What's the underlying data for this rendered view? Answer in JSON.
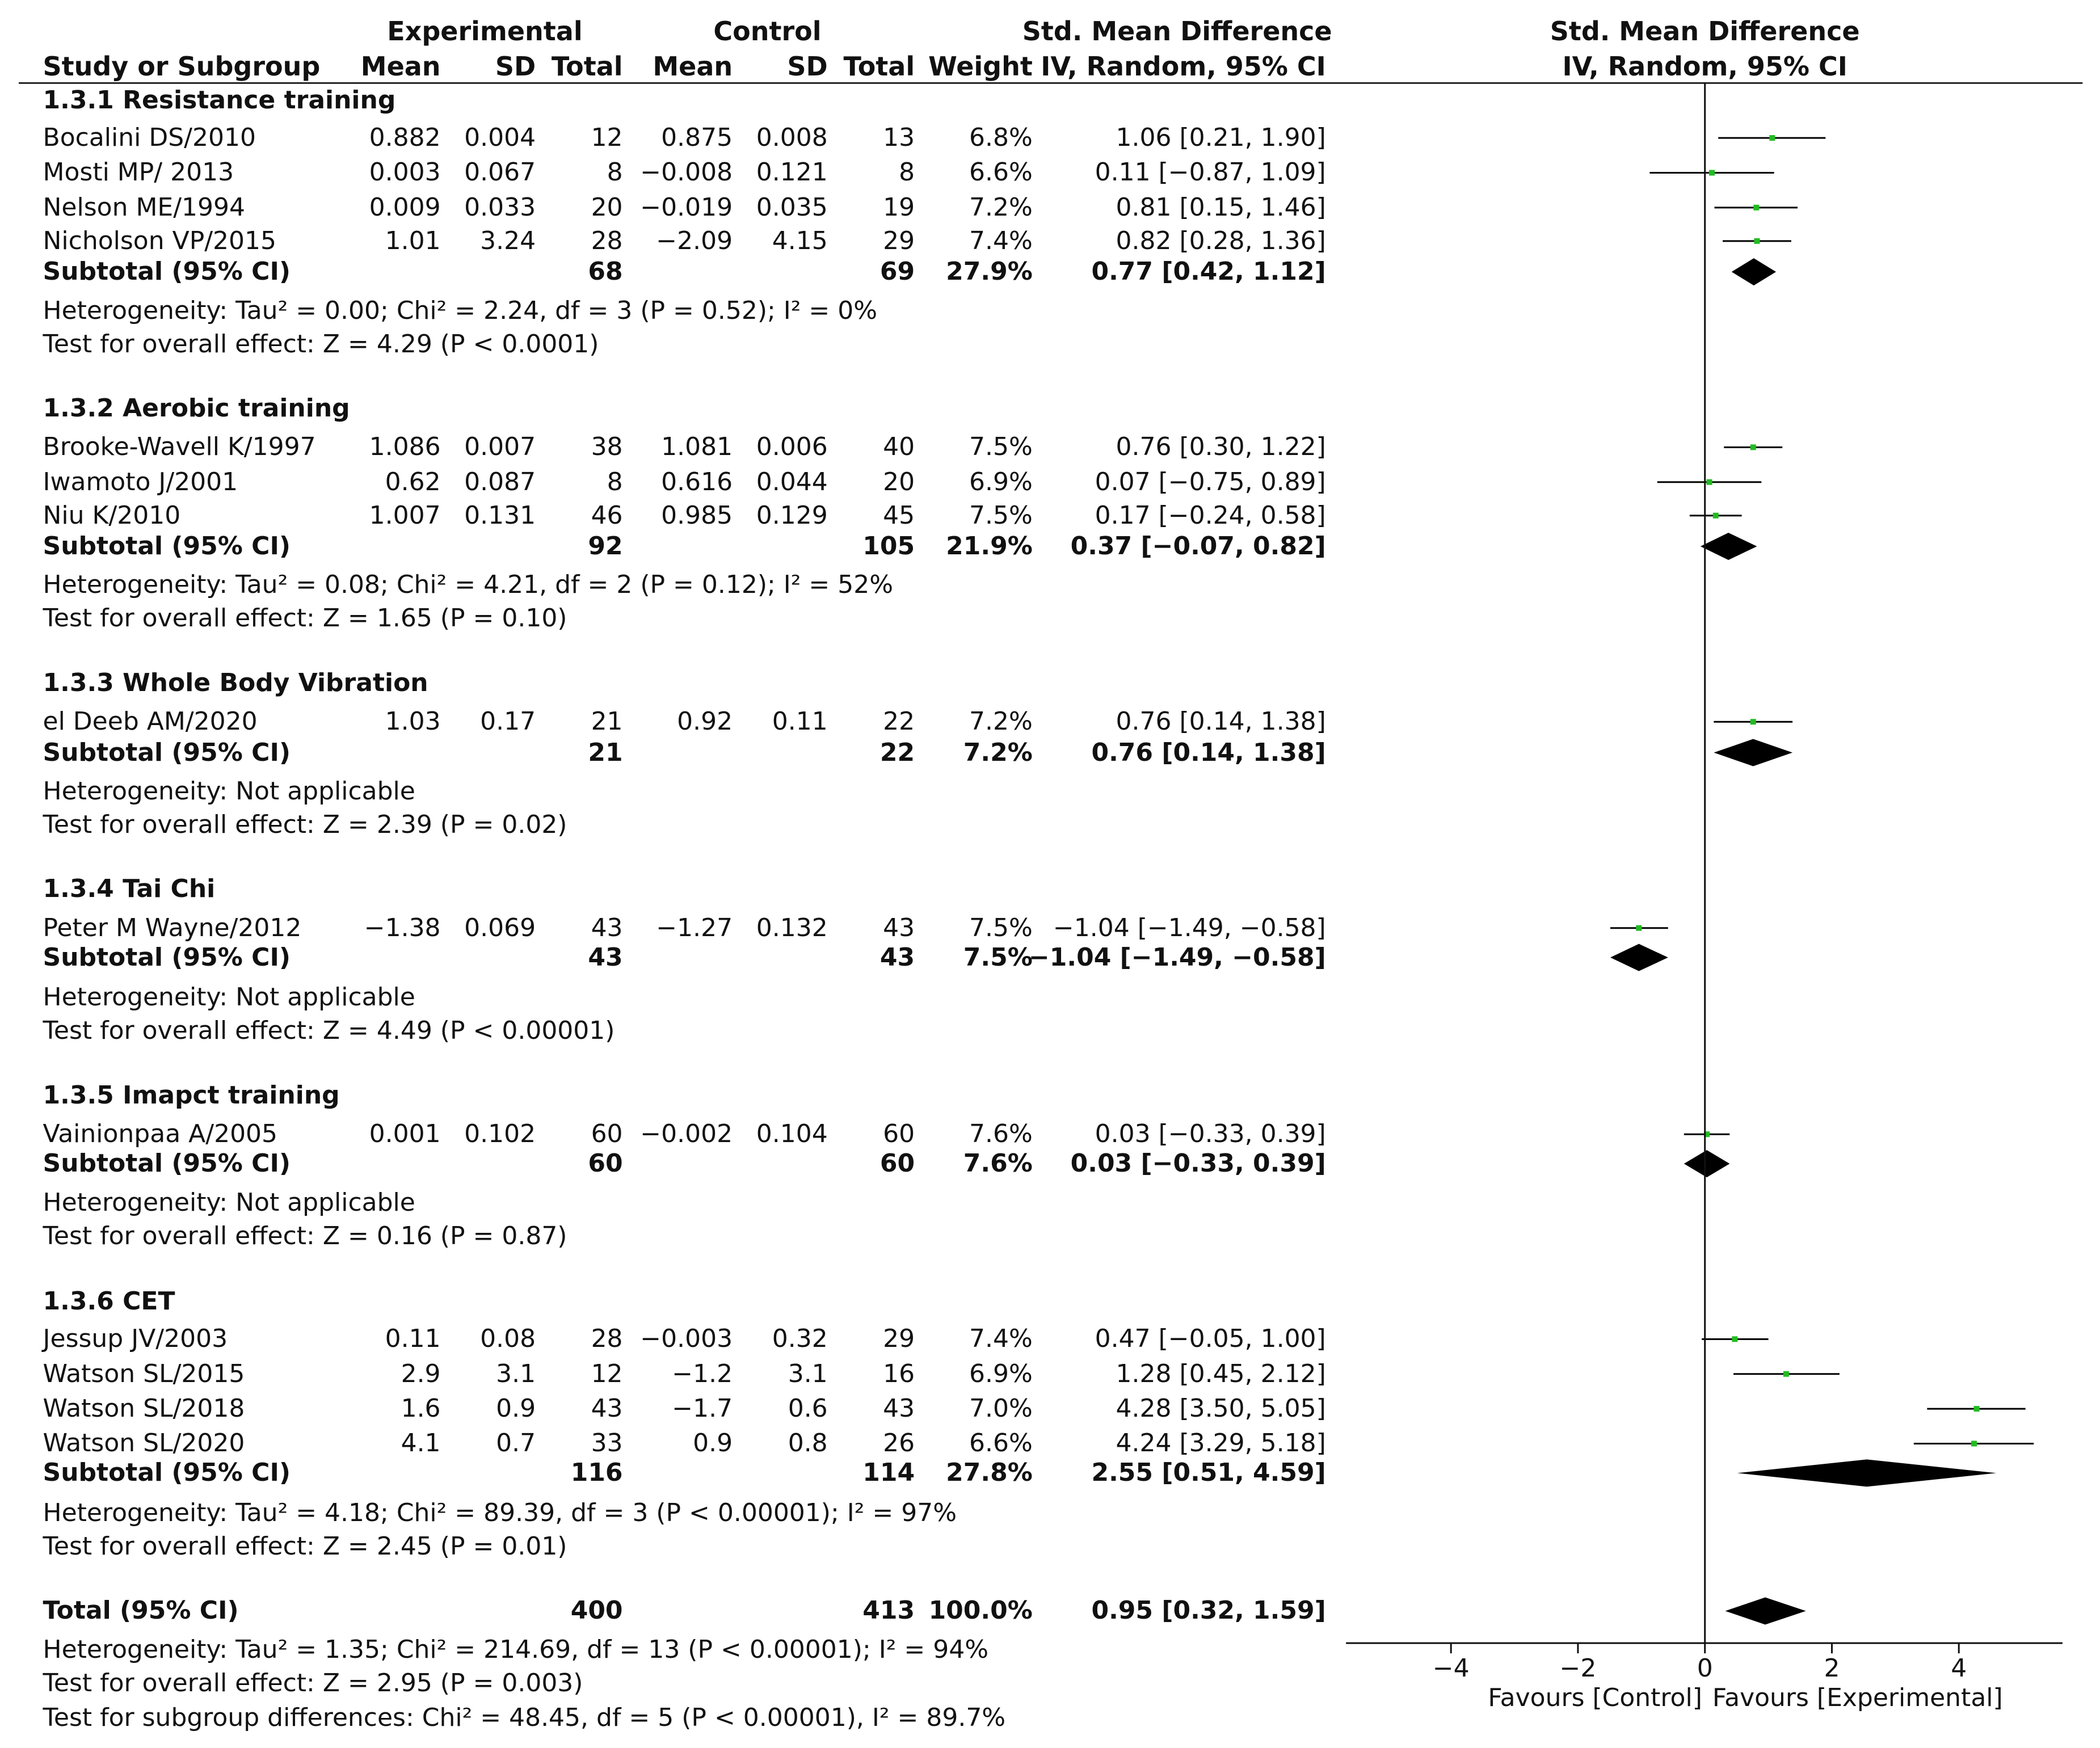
{
  "headers": {
    "experimental": "Experimental",
    "control": "Control",
    "smd_top": "Std. Mean Difference",
    "study": "Study or Subgroup",
    "mean": "Mean",
    "sd": "SD",
    "total": "Total",
    "weight": "Weight",
    "method": "IV, Random, 95% CI",
    "plot_top": "Std. Mean Difference",
    "plot_method": "IV, Random, 95% CI"
  },
  "subgroups": [
    {
      "title": "1.3.1 Resistance training",
      "studies": [
        {
          "name": "Bocalini DS/2010",
          "e_mean": "0.882",
          "e_sd": "0.004",
          "e_total": "12",
          "c_mean": "0.875",
          "c_sd": "0.008",
          "c_total": "13",
          "weight": "6.8%",
          "ci": "1.06 [0.21, 1.90]"
        },
        {
          "name": "Mosti MP/ 2013",
          "e_mean": "0.003",
          "e_sd": "0.067",
          "e_total": "8",
          "c_mean": "−0.008",
          "c_sd": "0.121",
          "c_total": "8",
          "weight": "6.6%",
          "ci": "0.11 [−0.87, 1.09]"
        },
        {
          "name": "Nelson ME/1994",
          "e_mean": "0.009",
          "e_sd": "0.033",
          "e_total": "20",
          "c_mean": "−0.019",
          "c_sd": "0.035",
          "c_total": "19",
          "weight": "7.2%",
          "ci": "0.81 [0.15, 1.46]"
        },
        {
          "name": "Nicholson VP/2015",
          "e_mean": "1.01",
          "e_sd": "3.24",
          "e_total": "28",
          "c_mean": "−2.09",
          "c_sd": "4.15",
          "c_total": "29",
          "weight": "7.4%",
          "ci": "0.82 [0.28, 1.36]"
        }
      ],
      "subtotal": {
        "label": "Subtotal (95% CI)",
        "e_total": "68",
        "c_total": "69",
        "weight": "27.9%",
        "ci": "0.77 [0.42, 1.12]"
      },
      "heterogeneity": "Heterogeneity: Tau² = 0.00; Chi² = 2.24, df = 3 (P = 0.52); I² = 0%",
      "overall": "Test for overall effect: Z = 4.29 (P < 0.0001)"
    },
    {
      "title": "1.3.2 Aerobic training",
      "studies": [
        {
          "name": "Brooke-Wavell K/1997",
          "e_mean": "1.086",
          "e_sd": "0.007",
          "e_total": "38",
          "c_mean": "1.081",
          "c_sd": "0.006",
          "c_total": "40",
          "weight": "7.5%",
          "ci": "0.76 [0.30, 1.22]"
        },
        {
          "name": "Iwamoto J/2001",
          "e_mean": "0.62",
          "e_sd": "0.087",
          "e_total": "8",
          "c_mean": "0.616",
          "c_sd": "0.044",
          "c_total": "20",
          "weight": "6.9%",
          "ci": "0.07 [−0.75, 0.89]"
        },
        {
          "name": "Niu K/2010",
          "e_mean": "1.007",
          "e_sd": "0.131",
          "e_total": "46",
          "c_mean": "0.985",
          "c_sd": "0.129",
          "c_total": "45",
          "weight": "7.5%",
          "ci": "0.17 [−0.24, 0.58]"
        }
      ],
      "subtotal": {
        "label": "Subtotal (95% CI)",
        "e_total": "92",
        "c_total": "105",
        "weight": "21.9%",
        "ci": "0.37 [−0.07, 0.82]"
      },
      "heterogeneity": "Heterogeneity: Tau² = 0.08; Chi² = 4.21, df = 2 (P = 0.12); I² = 52%",
      "overall": "Test for overall effect: Z = 1.65 (P = 0.10)"
    },
    {
      "title": "1.3.3 Whole Body Vibration",
      "studies": [
        {
          "name": "el Deeb AM/2020",
          "e_mean": "1.03",
          "e_sd": "0.17",
          "e_total": "21",
          "c_mean": "0.92",
          "c_sd": "0.11",
          "c_total": "22",
          "weight": "7.2%",
          "ci": "0.76 [0.14, 1.38]"
        }
      ],
      "subtotal": {
        "label": "Subtotal (95% CI)",
        "e_total": "21",
        "c_total": "22",
        "weight": "7.2%",
        "ci": "0.76 [0.14, 1.38]"
      },
      "heterogeneity": "Heterogeneity: Not applicable",
      "overall": "Test for overall effect: Z = 2.39 (P = 0.02)"
    },
    {
      "title": "1.3.4 Tai Chi",
      "studies": [
        {
          "name": "Peter M Wayne/2012",
          "e_mean": "−1.38",
          "e_sd": "0.069",
          "e_total": "43",
          "c_mean": "−1.27",
          "c_sd": "0.132",
          "c_total": "43",
          "weight": "7.5%",
          "ci": "−1.04 [−1.49, −0.58]"
        }
      ],
      "subtotal": {
        "label": "Subtotal (95% CI)",
        "e_total": "43",
        "c_total": "43",
        "weight": "7.5%",
        "ci": "−1.04 [−1.49, −0.58]"
      },
      "heterogeneity": "Heterogeneity: Not applicable",
      "overall": "Test for overall effect: Z = 4.49 (P < 0.00001)"
    },
    {
      "title": "1.3.5 Imapct training",
      "studies": [
        {
          "name": "Vainionpaa A/2005",
          "e_mean": "0.001",
          "e_sd": "0.102",
          "e_total": "60",
          "c_mean": "−0.002",
          "c_sd": "0.104",
          "c_total": "60",
          "weight": "7.6%",
          "ci": "0.03 [−0.33, 0.39]"
        }
      ],
      "subtotal": {
        "label": "Subtotal (95% CI)",
        "e_total": "60",
        "c_total": "60",
        "weight": "7.6%",
        "ci": "0.03 [−0.33, 0.39]"
      },
      "heterogeneity": "Heterogeneity: Not applicable",
      "overall": "Test for overall effect: Z = 0.16 (P = 0.87)"
    },
    {
      "title": "1.3.6 CET",
      "studies": [
        {
          "name": "Jessup JV/2003",
          "e_mean": "0.11",
          "e_sd": "0.08",
          "e_total": "28",
          "c_mean": "−0.003",
          "c_sd": "0.32",
          "c_total": "29",
          "weight": "7.4%",
          "ci": "0.47 [−0.05, 1.00]"
        },
        {
          "name": "Watson SL/2015",
          "e_mean": "2.9",
          "e_sd": "3.1",
          "e_total": "12",
          "c_mean": "−1.2",
          "c_sd": "3.1",
          "c_total": "16",
          "weight": "6.9%",
          "ci": "1.28 [0.45, 2.12]"
        },
        {
          "name": "Watson SL/2018",
          "e_mean": "1.6",
          "e_sd": "0.9",
          "e_total": "43",
          "c_mean": "−1.7",
          "c_sd": "0.6",
          "c_total": "43",
          "weight": "7.0%",
          "ci": "4.28 [3.50, 5.05]"
        },
        {
          "name": "Watson SL/2020",
          "e_mean": "4.1",
          "e_sd": "0.7",
          "e_total": "33",
          "c_mean": "0.9",
          "c_sd": "0.8",
          "c_total": "26",
          "weight": "6.6%",
          "ci": "4.24 [3.29, 5.18]"
        }
      ],
      "subtotal": {
        "label": "Subtotal (95% CI)",
        "e_total": "116",
        "c_total": "114",
        "weight": "27.8%",
        "ci": "2.55 [0.51, 4.59]"
      },
      "heterogeneity": "Heterogeneity: Tau² = 4.18; Chi² = 89.39, df = 3 (P < 0.00001); I² = 97%",
      "overall": "Test for overall effect: Z = 2.45 (P = 0.01)"
    }
  ],
  "total": {
    "label": "Total (95% CI)",
    "e_total": "400",
    "c_total": "413",
    "weight": "100.0%",
    "ci": "0.95 [0.32, 1.59]",
    "heterogeneity": "Heterogeneity: Tau² = 1.35; Chi² = 214.69, df = 13 (P < 0.00001); I² = 94%",
    "overall": "Test for overall effect: Z = 2.95 (P = 0.003)",
    "subgroup_diff": "Test for subgroup differences: Chi² = 48.45, df = 5 (P < 0.00001), I² = 89.7%"
  },
  "axis": {
    "ticks": [
      -4,
      -2,
      0,
      2,
      4
    ],
    "tick_labels": [
      "−4",
      "−2",
      "0",
      "2",
      "4"
    ],
    "favours_left": "Favours [Control]",
    "favours_right": "Favours [Experimental]"
  },
  "colors": {
    "point": "#22bb22",
    "diamond": "#000000",
    "line": "#000000"
  },
  "chart_data": {
    "type": "forest",
    "title": "Std. Mean Difference, IV, Random, 95% CI",
    "xlim": [
      -5.6,
      5.6
    ],
    "xlabel_left": "Favours [Control]",
    "xlabel_right": "Favours [Experimental]",
    "studies": [
      {
        "name": "Bocalini DS/2010",
        "est": 1.06,
        "lo": 0.21,
        "hi": 1.9
      },
      {
        "name": "Mosti MP/ 2013",
        "est": 0.11,
        "lo": -0.87,
        "hi": 1.09
      },
      {
        "name": "Nelson ME/1994",
        "est": 0.81,
        "lo": 0.15,
        "hi": 1.46
      },
      {
        "name": "Nicholson VP/2015",
        "est": 0.82,
        "lo": 0.28,
        "hi": 1.36
      },
      {
        "name": "Subtotal 1.3.1",
        "est": 0.77,
        "lo": 0.42,
        "hi": 1.12,
        "diamond": true
      },
      {
        "name": "Brooke-Wavell K/1997",
        "est": 0.76,
        "lo": 0.3,
        "hi": 1.22
      },
      {
        "name": "Iwamoto J/2001",
        "est": 0.07,
        "lo": -0.75,
        "hi": 0.89
      },
      {
        "name": "Niu K/2010",
        "est": 0.17,
        "lo": -0.24,
        "hi": 0.58
      },
      {
        "name": "Subtotal 1.3.2",
        "est": 0.37,
        "lo": -0.07,
        "hi": 0.82,
        "diamond": true
      },
      {
        "name": "el Deeb AM/2020",
        "est": 0.76,
        "lo": 0.14,
        "hi": 1.38
      },
      {
        "name": "Subtotal 1.3.3",
        "est": 0.76,
        "lo": 0.14,
        "hi": 1.38,
        "diamond": true
      },
      {
        "name": "Peter M Wayne/2012",
        "est": -1.04,
        "lo": -1.49,
        "hi": -0.58
      },
      {
        "name": "Subtotal 1.3.4",
        "est": -1.04,
        "lo": -1.49,
        "hi": -0.58,
        "diamond": true
      },
      {
        "name": "Vainionpaa A/2005",
        "est": 0.03,
        "lo": -0.33,
        "hi": 0.39
      },
      {
        "name": "Subtotal 1.3.5",
        "est": 0.03,
        "lo": -0.33,
        "hi": 0.39,
        "diamond": true
      },
      {
        "name": "Jessup JV/2003",
        "est": 0.47,
        "lo": -0.05,
        "hi": 1.0
      },
      {
        "name": "Watson SL/2015",
        "est": 1.28,
        "lo": 0.45,
        "hi": 2.12
      },
      {
        "name": "Watson SL/2018",
        "est": 4.28,
        "lo": 3.5,
        "hi": 5.05
      },
      {
        "name": "Watson SL/2020",
        "est": 4.24,
        "lo": 3.29,
        "hi": 5.18
      },
      {
        "name": "Subtotal 1.3.6",
        "est": 2.55,
        "lo": 0.51,
        "hi": 4.59,
        "diamond": true
      },
      {
        "name": "Total",
        "est": 0.95,
        "lo": 0.32,
        "hi": 1.59,
        "diamond": true
      }
    ]
  }
}
